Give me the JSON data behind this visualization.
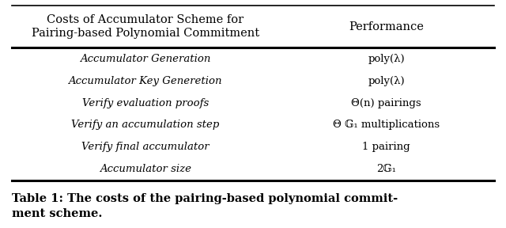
{
  "header_col1": "Costs of Accumulator Scheme for\nPairing-based Polynomial Commitment",
  "header_col2": "Performance",
  "rows": [
    [
      "Accumulator Generation",
      "poly(λ)"
    ],
    [
      "Accumulator Key Generetion",
      "poly(λ)"
    ],
    [
      "Verify evaluation proofs",
      "Θ(n) pairings"
    ],
    [
      "Verify an accumulation step",
      "Θ 𝔾₁ multiplications"
    ],
    [
      "Verify final accumulator",
      "1 pairing"
    ],
    [
      "Accumulator size",
      "2𝔾₁"
    ]
  ],
  "caption": "Table 1: The costs of the pairing-based polynomial commit-\nment scheme.",
  "bg_color": "#ffffff",
  "text_color": "#000000",
  "font_size_header": 10.5,
  "font_size_body": 9.5,
  "font_size_caption": 10.5
}
